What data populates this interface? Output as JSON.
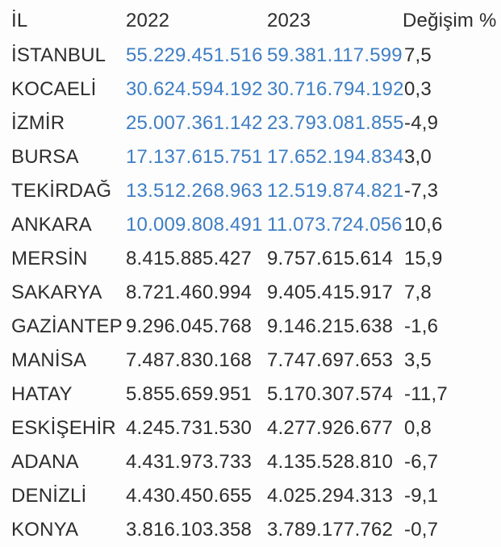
{
  "colors": {
    "highlight_blue": "#3e7ec4",
    "text_dark": "#2d2d2d",
    "background": "#fdfdfd"
  },
  "chart_data": {
    "type": "table",
    "title": "",
    "columns": [
      "İL",
      "2022",
      "2023",
      "Değişim %"
    ],
    "rows": [
      {
        "il": "İSTANBUL",
        "y2022": "55.229.451.516",
        "y2023": "59.381.117.599",
        "change": "7,5",
        "highlighted": true
      },
      {
        "il": "KOCAELİ",
        "y2022": "30.624.594.192",
        "y2023": "30.716.794.192",
        "change": "0,3",
        "highlighted": true
      },
      {
        "il": "İZMİR",
        "y2022": "25.007.361.142",
        "y2023": "23.793.081.855",
        "change": "-4,9",
        "highlighted": true
      },
      {
        "il": "BURSA",
        "y2022": "17.137.615.751",
        "y2023": "17.652.194.834",
        "change": "3,0",
        "highlighted": true
      },
      {
        "il": "TEKİRDAĞ",
        "y2022": "13.512.268.963",
        "y2023": "12.519.874.821",
        "change": "-7,3",
        "highlighted": true
      },
      {
        "il": "ANKARA",
        "y2022": "10.009.808.491",
        "y2023": "11.073.724.056",
        "change": "10,6",
        "highlighted": true
      },
      {
        "il": "MERSİN",
        "y2022": "8.415.885.427",
        "y2023": "9.757.615.614",
        "change": "15,9",
        "highlighted": false
      },
      {
        "il": "SAKARYA",
        "y2022": "8.721.460.994",
        "y2023": "9.405.415.917",
        "change": "7,8",
        "highlighted": false
      },
      {
        "il": "GAZİANTEP",
        "y2022": "9.296.045.768",
        "y2023": "9.146.215.638",
        "change": "-1,6",
        "highlighted": false
      },
      {
        "il": "MANİSA",
        "y2022": "7.487.830.168",
        "y2023": "7.747.697.653",
        "change": "3,5",
        "highlighted": false
      },
      {
        "il": "HATAY",
        "y2022": "5.855.659.951",
        "y2023": "5.170.307.574",
        "change": "-11,7",
        "highlighted": false
      },
      {
        "il": "ESKİŞEHİR",
        "y2022": "4.245.731.530",
        "y2023": "4.277.926.677",
        "change": "0,8",
        "highlighted": false
      },
      {
        "il": "ADANA",
        "y2022": "4.431.973.733",
        "y2023": "4.135.528.810",
        "change": "-6,7",
        "highlighted": false
      },
      {
        "il": "DENİZLİ",
        "y2022": "4.430.450.655",
        "y2023": "4.025.294.313",
        "change": "-9,1",
        "highlighted": false
      },
      {
        "il": "KONYA",
        "y2022": "3.816.103.358",
        "y2023": "3.789.177.762",
        "change": "-0,7",
        "highlighted": false
      }
    ],
    "layout": {
      "grid": "off",
      "legend": "none",
      "highlight_rule": "top six rows' 2022 and 2023 values rendered in blue"
    }
  }
}
